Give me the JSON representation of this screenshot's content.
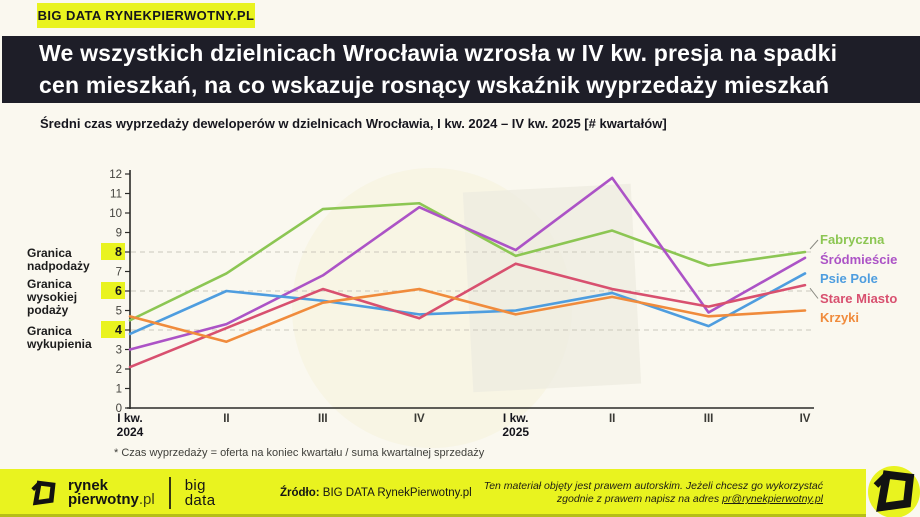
{
  "badge": {
    "label": "BIG DATA RYNEKPIERWOTNY.PL"
  },
  "header": {
    "title": "We wszystkich dzielnicach Wrocławia wzrosła w IV kw. presja na spadki\ncen mieszkań, na co wskazuje rosnący wskaźnik wyprzedaży mieszkań"
  },
  "subtitle": "Średni czas wyprzedaży deweloperów w dzielnicach Wrocławia, I kw. 2024 – IV kw. 2025 [# kwartałów]",
  "chart_data": {
    "type": "line",
    "title": "Średni czas wyprzedaży deweloperów w dzielnicach Wrocławia, I kw. 2024 – IV kw. 2025 [# kwartałów]",
    "categories": [
      "I kw.\n2024",
      "II",
      "III",
      "IV",
      "I kw.\n2025",
      "II",
      "III",
      "IV"
    ],
    "series": [
      {
        "name": "Fabryczna",
        "color": "#8CC653",
        "values": [
          4.5,
          6.9,
          10.2,
          10.5,
          7.8,
          9.1,
          7.3,
          8.0
        ]
      },
      {
        "name": "Śródmieście",
        "color": "#AC53C6",
        "values": [
          3.0,
          4.3,
          6.8,
          10.3,
          8.1,
          11.8,
          4.9,
          7.7
        ]
      },
      {
        "name": "Psie Pole",
        "color": "#4E9DDF",
        "values": [
          3.8,
          6.0,
          5.5,
          4.8,
          5.0,
          5.9,
          4.2,
          6.9
        ]
      },
      {
        "name": "Stare Miasto",
        "color": "#D8506F",
        "values": [
          2.1,
          4.1,
          6.1,
          4.6,
          7.4,
          6.1,
          5.2,
          6.3
        ]
      },
      {
        "name": "Krzyki",
        "color": "#F08B3C",
        "values": [
          4.7,
          3.4,
          5.4,
          6.1,
          4.8,
          5.7,
          4.7,
          5.0
        ]
      }
    ],
    "ylim": [
      0,
      12
    ],
    "y_ticks": [
      0,
      1,
      2,
      3,
      4,
      5,
      6,
      7,
      8,
      9,
      10,
      11,
      12
    ],
    "highlighted_y_ticks": [
      8,
      6,
      4
    ],
    "gridlines_at": [
      8,
      6,
      4
    ],
    "grid_style": "dashed",
    "legend_position": "right",
    "annotations": [
      {
        "value": 8,
        "label": "Granica\nnadpodaży"
      },
      {
        "value": 6,
        "label": "Granica\nwysokiej\npodaży"
      },
      {
        "value": 4,
        "label": "Granica\nwykupienia"
      }
    ]
  },
  "footnote": "* Czas wyprzedaży = oferta na koniec kwartału / suma kwartalnej sprzedaży",
  "footer": {
    "logo_line1": "rynek",
    "logo_line2_bold": "pierwotny",
    "logo_line2_suffix": ".pl",
    "brand2_line1": "big",
    "brand2_line2": "data",
    "source_label": "Źródło:",
    "source_value": " BIG DATA RynekPierwotny.pl",
    "rights_line1": "Ten materiał objęty jest prawem autorskim. Jeżeli chcesz go wykorzystać",
    "rights_line2_prefix": "zgodnie z prawem napisz na adres ",
    "rights_email": "pr@rynekpierwotny.pl"
  },
  "colors": {
    "accent_yellow": "#E9F31F",
    "header_bg": "#1E1E28",
    "page_bg": "#FAF8EF",
    "grid": "#CBC8BD",
    "axis": "#2B2B28",
    "watermark_circle": "#F6F1DA",
    "watermark_square": "#ECEBE0"
  }
}
